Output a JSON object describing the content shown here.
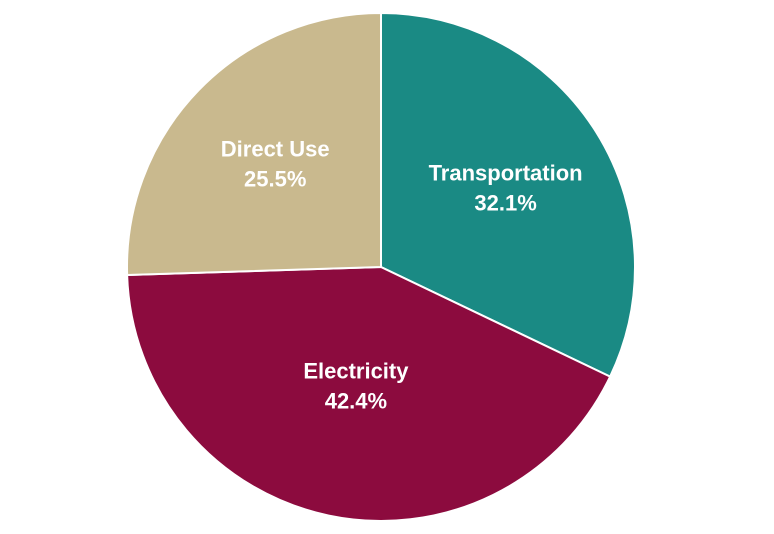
{
  "chart_data": {
    "type": "pie",
    "categories": [
      "Transportation",
      "Electricity",
      "Direct Use"
    ],
    "values": [
      32.1,
      42.4,
      25.5
    ],
    "value_labels": [
      "32.1%",
      "42.4%",
      "25.5%"
    ],
    "colors": [
      "#1a8a84",
      "#8c0b3e",
      "#c9b98e"
    ],
    "start_angle_deg": 0,
    "direction": "clockwise",
    "legend": "none"
  }
}
